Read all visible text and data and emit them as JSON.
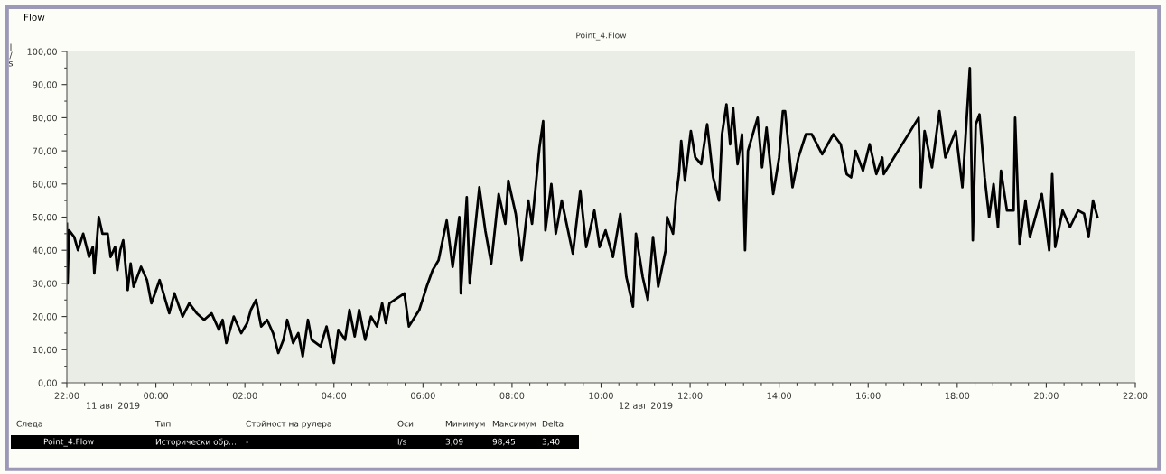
{
  "chart_data": {
    "type": "line",
    "title": "Flow",
    "subtitle": "Point_4.Flow",
    "ylabel": "l/s",
    "xlim": [
      "2019-08-11T22:00",
      "2019-08-12T22:00"
    ],
    "xticks": [
      {
        "value": "2019-08-11T22:00",
        "label": "22:00"
      },
      {
        "value": "2019-08-12T00:00",
        "label": "00:00"
      },
      {
        "value": "2019-08-12T02:00",
        "label": "02:00"
      },
      {
        "value": "2019-08-12T04:00",
        "label": "04:00"
      },
      {
        "value": "2019-08-12T06:00",
        "label": "06:00"
      },
      {
        "value": "2019-08-12T08:00",
        "label": "08:00"
      },
      {
        "value": "2019-08-12T10:00",
        "label": "10:00"
      },
      {
        "value": "2019-08-12T12:00",
        "label": "12:00"
      },
      {
        "value": "2019-08-12T14:00",
        "label": "14:00"
      },
      {
        "value": "2019-08-12T16:00",
        "label": "16:00"
      },
      {
        "value": "2019-08-12T18:00",
        "label": "18:00"
      },
      {
        "value": "2019-08-12T20:00",
        "label": "20:00"
      },
      {
        "value": "2019-08-12T22:00",
        "label": "22:00"
      }
    ],
    "ylim": [
      0,
      100
    ],
    "yticks": [
      {
        "value": 0,
        "label": "0,00"
      },
      {
        "value": 10,
        "label": "10,00"
      },
      {
        "value": 20,
        "label": "20,00"
      },
      {
        "value": 30,
        "label": "30,00"
      },
      {
        "value": 40,
        "label": "40,00"
      },
      {
        "value": 50,
        "label": "50,00"
      },
      {
        "value": 60,
        "label": "60,00"
      },
      {
        "value": 70,
        "label": "70,00"
      },
      {
        "value": 80,
        "label": "80,00"
      },
      {
        "value": 90,
        "label": "90,00"
      },
      {
        "value": 100,
        "label": "100,00"
      }
    ],
    "grid": false,
    "marker": "none",
    "line_style": "solid",
    "series": [
      {
        "color": "#000000",
        "x": [
          "2019-08-11T22:00",
          "2019-08-11T22:01",
          "2019-08-11T22:03",
          "2019-08-11T22:10",
          "2019-08-11T22:15",
          "2019-08-11T22:22",
          "2019-08-11T22:30",
          "2019-08-11T22:35",
          "2019-08-11T22:37",
          "2019-08-11T22:43",
          "2019-08-11T22:48",
          "2019-08-11T22:55",
          "2019-08-11T22:59",
          "2019-08-11T23:05",
          "2019-08-11T23:08",
          "2019-08-11T23:12",
          "2019-08-11T23:16",
          "2019-08-11T23:22",
          "2019-08-11T23:26",
          "2019-08-11T23:30",
          "2019-08-11T23:40",
          "2019-08-11T23:48",
          "2019-08-11T23:54",
          "2019-08-12T00:05",
          "2019-08-12T00:18",
          "2019-08-12T00:25",
          "2019-08-12T00:36",
          "2019-08-12T00:45",
          "2019-08-12T00:55",
          "2019-08-12T01:05",
          "2019-08-12T01:15",
          "2019-08-12T01:25",
          "2019-08-12T01:30",
          "2019-08-12T01:35",
          "2019-08-12T01:45",
          "2019-08-12T01:55",
          "2019-08-12T02:03",
          "2019-08-12T02:08",
          "2019-08-12T02:15",
          "2019-08-12T02:22",
          "2019-08-12T02:30",
          "2019-08-12T02:38",
          "2019-08-12T02:45",
          "2019-08-12T02:52",
          "2019-08-12T02:57",
          "2019-08-12T03:05",
          "2019-08-12T03:12",
          "2019-08-12T03:18",
          "2019-08-12T03:25",
          "2019-08-12T03:30",
          "2019-08-12T03:42",
          "2019-08-12T03:50",
          "2019-08-12T04:00",
          "2019-08-12T04:06",
          "2019-08-12T04:15",
          "2019-08-12T04:21",
          "2019-08-12T04:28",
          "2019-08-12T04:34",
          "2019-08-12T04:42",
          "2019-08-12T04:50",
          "2019-08-12T04:58",
          "2019-08-12T05:05",
          "2019-08-12T05:10",
          "2019-08-12T05:15",
          "2019-08-12T05:35",
          "2019-08-12T05:41",
          "2019-08-12T05:55",
          "2019-08-12T06:05",
          "2019-08-12T06:13",
          "2019-08-12T06:21",
          "2019-08-12T06:32",
          "2019-08-12T06:40",
          "2019-08-12T06:49",
          "2019-08-12T06:51",
          "2019-08-12T06:59",
          "2019-08-12T07:03",
          "2019-08-12T07:10",
          "2019-08-12T07:16",
          "2019-08-12T07:24",
          "2019-08-12T07:32",
          "2019-08-12T07:42",
          "2019-08-12T07:51",
          "2019-08-12T07:55",
          "2019-08-12T08:05",
          "2019-08-12T08:13",
          "2019-08-12T08:22",
          "2019-08-12T08:27",
          "2019-08-12T08:37",
          "2019-08-12T08:42",
          "2019-08-12T08:45",
          "2019-08-12T08:53",
          "2019-08-12T08:59",
          "2019-08-12T09:07",
          "2019-08-12T09:22",
          "2019-08-12T09:32",
          "2019-08-12T09:40",
          "2019-08-12T09:51",
          "2019-08-12T09:58",
          "2019-08-12T10:06",
          "2019-08-12T10:16",
          "2019-08-12T10:26",
          "2019-08-12T10:34",
          "2019-08-12T10:43",
          "2019-08-12T10:47",
          "2019-08-12T10:56",
          "2019-08-12T11:03",
          "2019-08-12T11:10",
          "2019-08-12T11:17",
          "2019-08-12T11:27",
          "2019-08-12T11:29",
          "2019-08-12T11:37",
          "2019-08-12T11:41",
          "2019-08-12T11:45",
          "2019-08-12T11:48",
          "2019-08-12T11:53",
          "2019-08-12T12:01",
          "2019-08-12T12:07",
          "2019-08-12T12:15",
          "2019-08-12T12:23",
          "2019-08-12T12:31",
          "2019-08-12T12:39",
          "2019-08-12T12:43",
          "2019-08-12T12:49",
          "2019-08-12T12:54",
          "2019-08-12T12:58",
          "2019-08-12T13:04",
          "2019-08-12T13:10",
          "2019-08-12T13:14",
          "2019-08-12T13:18",
          "2019-08-12T13:27",
          "2019-08-12T13:31",
          "2019-08-12T13:37",
          "2019-08-12T13:43",
          "2019-08-12T13:52",
          "2019-08-12T14:00",
          "2019-08-12T14:05",
          "2019-08-12T14:08",
          "2019-08-12T14:18",
          "2019-08-12T14:26",
          "2019-08-12T14:36",
          "2019-08-12T14:44",
          "2019-08-12T14:58",
          "2019-08-12T15:13",
          "2019-08-12T15:23",
          "2019-08-12T15:31",
          "2019-08-12T15:37",
          "2019-08-12T15:43",
          "2019-08-12T15:53",
          "2019-08-12T16:02",
          "2019-08-12T16:11",
          "2019-08-12T16:19",
          "2019-08-12T16:21",
          "2019-08-12T17:08",
          "2019-08-12T17:11",
          "2019-08-12T17:16",
          "2019-08-12T17:26",
          "2019-08-12T17:36",
          "2019-08-12T17:44",
          "2019-08-12T17:58",
          "2019-08-12T18:07",
          "2019-08-12T18:17",
          "2019-08-12T18:21",
          "2019-08-12T18:25",
          "2019-08-12T18:30",
          "2019-08-12T18:37",
          "2019-08-12T18:43",
          "2019-08-12T18:49",
          "2019-08-12T18:55",
          "2019-08-12T18:59",
          "2019-08-12T19:07",
          "2019-08-12T19:16",
          "2019-08-12T19:18",
          "2019-08-12T19:24",
          "2019-08-12T19:32",
          "2019-08-12T19:38",
          "2019-08-12T19:54",
          "2019-08-12T20:04",
          "2019-08-12T20:08",
          "2019-08-12T20:12",
          "2019-08-12T20:22",
          "2019-08-12T20:32",
          "2019-08-12T20:43",
          "2019-08-12T20:51",
          "2019-08-12T20:57",
          "2019-08-12T21:03",
          "2019-08-12T21:09"
        ],
        "values": [
          48,
          30,
          46,
          44,
          40,
          45,
          38,
          41,
          33,
          50,
          45,
          45,
          38,
          41,
          34,
          40,
          43,
          28,
          36,
          29,
          35,
          31,
          24,
          31,
          21,
          27,
          20,
          24,
          21,
          19,
          21,
          16,
          19,
          12,
          20,
          15,
          18,
          22,
          25,
          17,
          19,
          15,
          9,
          13,
          19,
          12,
          15,
          8,
          19,
          13,
          11,
          17,
          6,
          16,
          13,
          22,
          14,
          22,
          13,
          20,
          17,
          24,
          18,
          24,
          27,
          17,
          22,
          29,
          34,
          37,
          49,
          35,
          50,
          27,
          56,
          30,
          46,
          59,
          46,
          36,
          57,
          48,
          61,
          51,
          37,
          55,
          48,
          71,
          79,
          46,
          60,
          45,
          55,
          39,
          58,
          41,
          52,
          41,
          46,
          38,
          51,
          32,
          23,
          45,
          32,
          25,
          44,
          29,
          40,
          50,
          45,
          56,
          63,
          73,
          61,
          76,
          68,
          66,
          78,
          62,
          55,
          75,
          84,
          72,
          83,
          66,
          75,
          40,
          70,
          77,
          80,
          65,
          77,
          57,
          68,
          82,
          82,
          59,
          68,
          75,
          75,
          69,
          75,
          72,
          63,
          62,
          70,
          64,
          72,
          63,
          68,
          63,
          80,
          59,
          76,
          65,
          82,
          68,
          76,
          59,
          95,
          43,
          78,
          81,
          62,
          50,
          60,
          47,
          64,
          52,
          52,
          80,
          42,
          55,
          44,
          57,
          40,
          63,
          41,
          52,
          47,
          52,
          51,
          44,
          55,
          50
        ]
      }
    ],
    "annotations": [
      "11 авг 2019",
      "12 авг 2019",
      "Следа",
      "Тип",
      "Стойност на рулера",
      "Оси",
      "Минимум",
      "Максимум",
      "Delta",
      "Point_4.Flow",
      "Исторически обр…",
      "-",
      "l/s",
      "3,09",
      "98,45",
      "3,40"
    ]
  }
}
